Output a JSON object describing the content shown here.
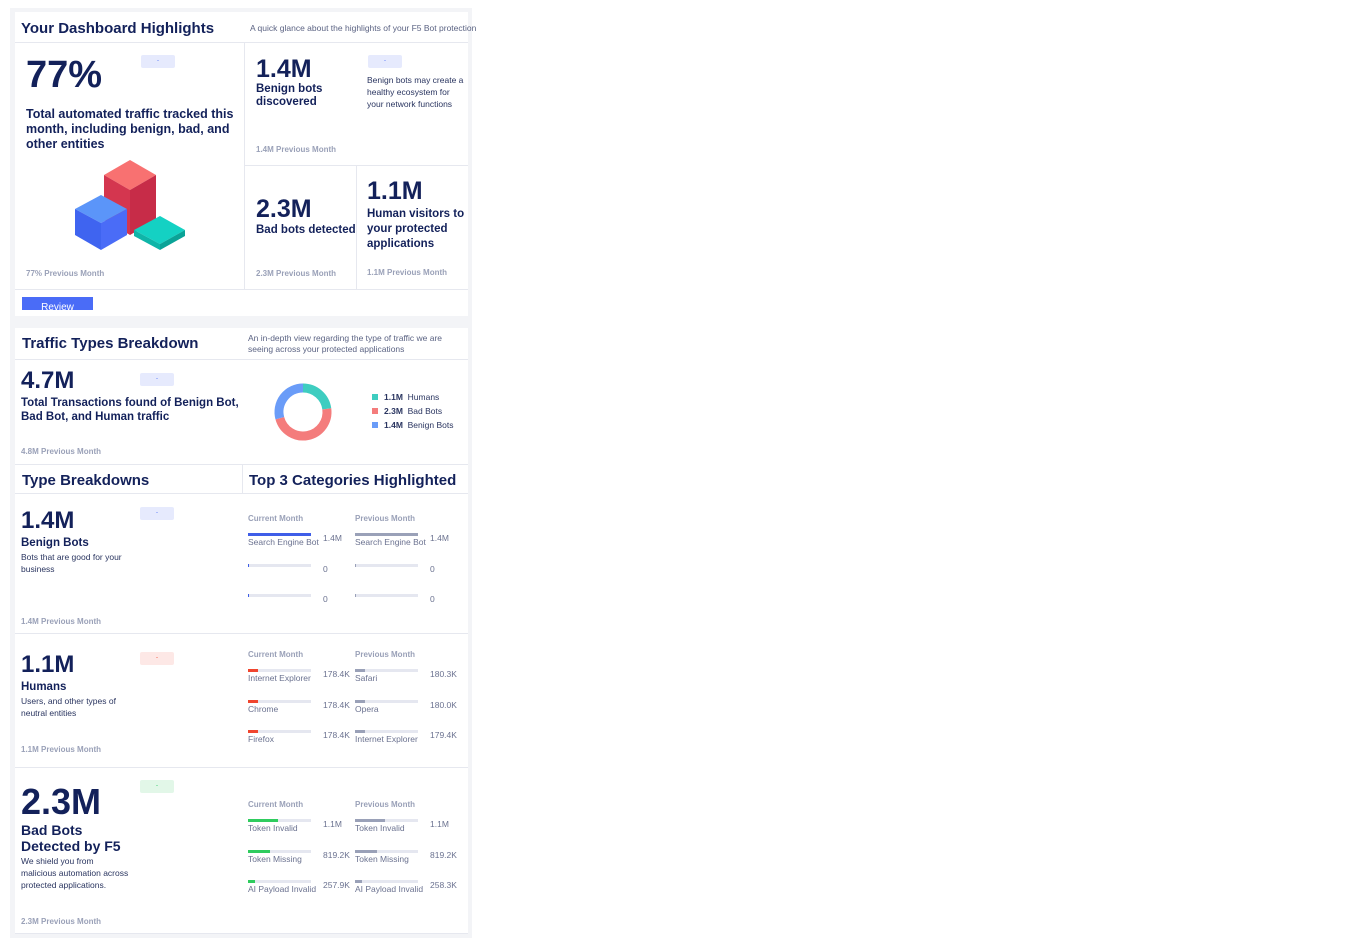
{
  "highlights": {
    "title": "Your Dashboard Highlights",
    "subtitle": "A quick glance about the highlights of your F5 Bot protection",
    "main": {
      "value": "77%",
      "label": "Total automated traffic tracked this month, including benign, bad, and other entities",
      "previous": "77% Previous Month",
      "badge": "-"
    },
    "benign": {
      "value": "1.4M",
      "label": "Benign bots discovered",
      "desc": "Benign bots may create a healthy ecosystem for your network functions",
      "previous": "1.4M Previous Month",
      "badge": "-"
    },
    "bad": {
      "value": "2.3M",
      "label": "Bad bots detected",
      "previous": "2.3M Previous Month"
    },
    "human": {
      "value": "1.1M",
      "label": "Human visitors to your protected applications",
      "previous": "1.1M Previous Month"
    },
    "review_button": "Review"
  },
  "traffic": {
    "title": "Traffic Types Breakdown",
    "subtitle": "An in-depth view regarding the type of traffic we are seeing across your protected applications",
    "value": "4.7M",
    "label": "Total Transactions found of Benign Bot, Bad Bot, and Human traffic",
    "previous": "4.8M Previous Month",
    "badge": "-",
    "legend": [
      {
        "value": "1.1M",
        "name": "Humans",
        "color": "#3ecdc0",
        "amount": 1.1
      },
      {
        "value": "2.3M",
        "name": "Bad Bots",
        "color": "#f47c7c",
        "amount": 2.3
      },
      {
        "value": "1.4M",
        "name": "Benign Bots",
        "color": "#6a9cf8",
        "amount": 1.4
      }
    ]
  },
  "types": {
    "title": "Type Breakdowns",
    "categories_title": "Top 3 Categories Highlighted",
    "current_label": "Current Month",
    "previous_label": "Previous Month",
    "sections": [
      {
        "value": "1.4M",
        "label": "Benign Bots",
        "desc": "Bots that are good for your business",
        "previous": "1.4M Previous Month",
        "badge": "-",
        "badge_bg": "#e6eafd",
        "badge_color": "#4a6cf7",
        "bar_color": "#3f5ee8",
        "current": [
          {
            "name": "Search Engine Bot",
            "value": "1.4M",
            "fraction": 1
          },
          {
            "name": "",
            "value": "0",
            "fraction": 0.02
          },
          {
            "name": "",
            "value": "0",
            "fraction": 0.02
          }
        ],
        "prev": [
          {
            "name": "Search Engine Bot",
            "value": "1.4M",
            "fraction": 1
          },
          {
            "name": "",
            "value": "0",
            "fraction": 0.02
          },
          {
            "name": "",
            "value": "0",
            "fraction": 0.02
          }
        ]
      },
      {
        "value": "1.1M",
        "label": "Humans",
        "desc": "Users, and other types of neutral entities",
        "previous": "1.1M Previous Month",
        "badge": "-",
        "badge_bg": "#fde8e6",
        "badge_color": "#f0452e",
        "bar_color": "#f0452e",
        "current": [
          {
            "name": "Internet Explorer",
            "value": "178.4K",
            "fraction": 0.16
          },
          {
            "name": "Chrome",
            "value": "178.4K",
            "fraction": 0.16
          },
          {
            "name": "Firefox",
            "value": "178.4K",
            "fraction": 0.16
          }
        ],
        "prev": [
          {
            "name": "Safari",
            "value": "180.3K",
            "fraction": 0.16
          },
          {
            "name": "Opera",
            "value": "180.0K",
            "fraction": 0.16
          },
          {
            "name": "Internet Explorer",
            "value": "179.4K",
            "fraction": 0.16
          }
        ]
      },
      {
        "value": "2.3M",
        "label": "Bad Bots Detected by F5",
        "desc": "We shield you from malicious automation across protected applications.",
        "previous": "2.3M Previous Month",
        "badge": "-",
        "badge_bg": "#e2f7e8",
        "badge_color": "#22c55e",
        "bar_color": "#2fcc5e",
        "current": [
          {
            "name": "Token Invalid",
            "value": "1.1M",
            "fraction": 0.47
          },
          {
            "name": "Token Missing",
            "value": "819.2K",
            "fraction": 0.35
          },
          {
            "name": "AI Payload Invalid",
            "value": "257.9K",
            "fraction": 0.11
          }
        ],
        "prev": [
          {
            "name": "Token Invalid",
            "value": "1.1M",
            "fraction": 0.47
          },
          {
            "name": "Token Missing",
            "value": "819.2K",
            "fraction": 0.35
          },
          {
            "name": "AI Payload Invalid",
            "value": "258.3K",
            "fraction": 0.11
          }
        ]
      }
    ]
  },
  "colors": {
    "accent": "#4a6cf7",
    "text": "#13215a",
    "prev_bar": "#9aa1b8"
  }
}
